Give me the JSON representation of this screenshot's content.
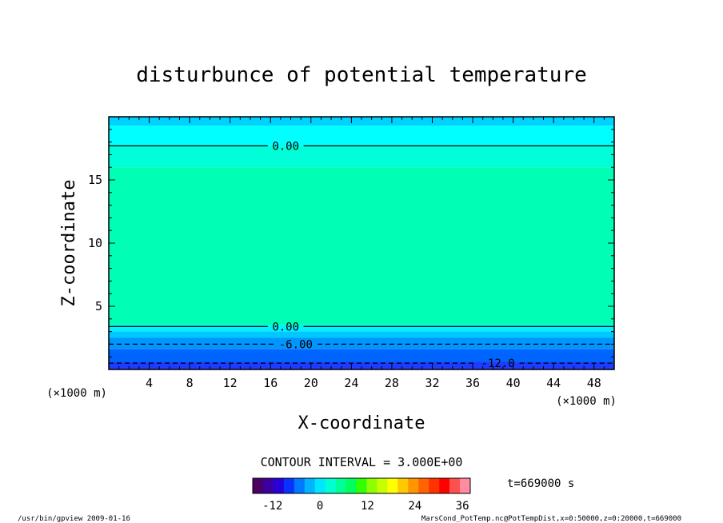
{
  "chart_data": {
    "type": "heatmap",
    "title": "disturbunce of potential temperature",
    "xlabel": "X-coordinate",
    "ylabel": "Z-coordinate",
    "x_unit_left": "(×1000 m)",
    "x_unit_right": "(×1000 m)",
    "xlim": [
      0,
      50
    ],
    "ylim": [
      0,
      20
    ],
    "x_ticks": [
      4,
      8,
      12,
      16,
      20,
      24,
      28,
      32,
      36,
      40,
      44,
      48
    ],
    "y_ticks": [
      5,
      10,
      15
    ],
    "bands": [
      {
        "z0": 19.3,
        "z1": 20.0,
        "color": "#00d2ff"
      },
      {
        "z0": 17.7,
        "z1": 19.3,
        "color": "#00ffff"
      },
      {
        "z0": 16.0,
        "z1": 17.7,
        "color": "#00ffd8"
      },
      {
        "z0": 3.5,
        "z1": 16.0,
        "color": "#00ffb4"
      },
      {
        "z0": 3.0,
        "z1": 3.5,
        "color": "#00f0ff"
      },
      {
        "z0": 2.5,
        "z1": 3.0,
        "color": "#00c8ff"
      },
      {
        "z0": 1.6,
        "z1": 2.5,
        "color": "#0096ff"
      },
      {
        "z0": 0.6,
        "z1": 1.6,
        "color": "#0064ff"
      },
      {
        "z0": 0.0,
        "z1": 0.6,
        "color": "#1e3cff"
      }
    ],
    "contours": [
      {
        "level": "0.00",
        "z": 17.7,
        "style": "solid",
        "label_x": 17.5
      },
      {
        "level": "0.00",
        "z": 3.4,
        "style": "solid",
        "label_x": 17.5
      },
      {
        "level": "-6.00",
        "z": 2.0,
        "style": "dashed",
        "label_x": 18.5
      },
      {
        "level": "-12.0",
        "z": 0.5,
        "style": "dashed",
        "label_x": 38.5
      }
    ],
    "contour_interval_text": "CONTOUR INTERVAL = 3.000E+00",
    "time_text": "t=669000 s",
    "colorbar": {
      "range": [
        -17,
        38
      ],
      "ticks": [
        -12,
        0,
        12,
        24,
        36
      ],
      "colors": [
        "#4b0064",
        "#3c00a0",
        "#2800dc",
        "#0a32ff",
        "#0078ff",
        "#00b4ff",
        "#00e6ff",
        "#00ffd2",
        "#00ff96",
        "#00ff5a",
        "#32ff00",
        "#8cff00",
        "#c8ff00",
        "#ffff00",
        "#ffc800",
        "#ff9600",
        "#ff6400",
        "#ff3200",
        "#ff0000",
        "#ff5050",
        "#ff8ca0"
      ]
    }
  },
  "footer": {
    "left": "/usr/bin/gpview   2009-01-16",
    "right": "MarsCond_PotTemp.nc@PotTempDist,x=0:50000,z=0:20000,t=669000"
  }
}
